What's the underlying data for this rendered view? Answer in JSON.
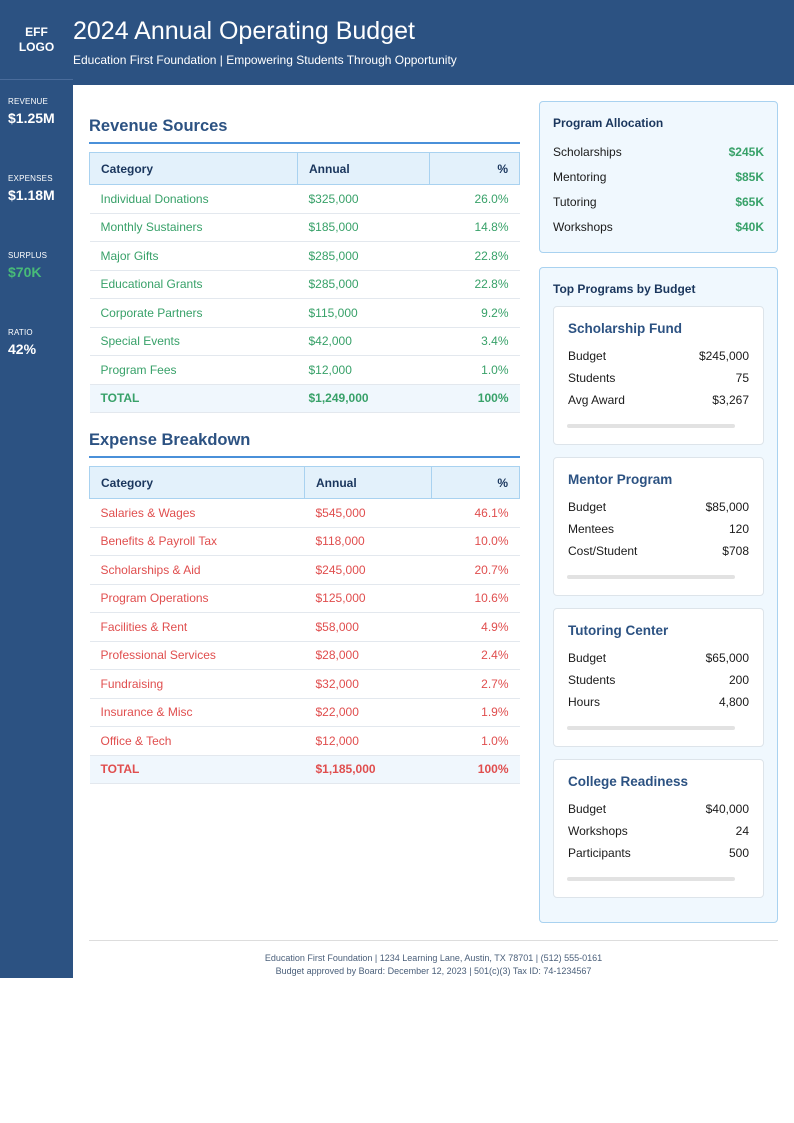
{
  "sidebar": {
    "logo_line1": "EFF",
    "logo_line2": "LOGO",
    "metrics": [
      {
        "label": "REVENUE",
        "value": "$1.25M"
      },
      {
        "label": "EXPENSES",
        "value": "$1.18M"
      },
      {
        "label": "SURPLUS",
        "value": "$70K"
      },
      {
        "label": "RATIO",
        "value": "42%"
      }
    ]
  },
  "header": {
    "title": "2024 Annual Operating Budget",
    "subtitle": "Education First Foundation | Empowering Students Through Opportunity"
  },
  "revenue": {
    "title": "Revenue Sources",
    "columns": [
      "Category",
      "Annual",
      "%"
    ],
    "rows": [
      [
        "Individual Donations",
        "$325,000",
        "26.0%"
      ],
      [
        "Monthly Sustainers",
        "$185,000",
        "14.8%"
      ],
      [
        "Major Gifts",
        "$285,000",
        "22.8%"
      ],
      [
        "Educational Grants",
        "$285,000",
        "22.8%"
      ],
      [
        "Corporate Partners",
        "$115,000",
        "9.2%"
      ],
      [
        "Special Events",
        "$42,000",
        "3.4%"
      ],
      [
        "Program Fees",
        "$12,000",
        "1.0%"
      ]
    ],
    "total": [
      "TOTAL",
      "$1,249,000",
      "100%"
    ]
  },
  "expenses": {
    "title": "Expense Breakdown",
    "columns": [
      "Category",
      "Annual",
      "%"
    ],
    "rows": [
      [
        "Salaries & Wages",
        "$545,000",
        "46.1%"
      ],
      [
        "Benefits & Payroll Tax",
        "$118,000",
        "10.0%"
      ],
      [
        "Scholarships & Aid",
        "$245,000",
        "20.7%"
      ],
      [
        "Program Operations",
        "$125,000",
        "10.6%"
      ],
      [
        "Facilities & Rent",
        "$58,000",
        "4.9%"
      ],
      [
        "Professional Services",
        "$28,000",
        "2.4%"
      ],
      [
        "Fundraising",
        "$32,000",
        "2.7%"
      ],
      [
        "Insurance & Misc",
        "$22,000",
        "1.9%"
      ],
      [
        "Office & Tech",
        "$12,000",
        "1.0%"
      ]
    ],
    "total": [
      "TOTAL",
      "$1,185,000",
      "100%"
    ]
  },
  "allocation": {
    "title": "Program Allocation",
    "items": [
      {
        "label": "Scholarships",
        "value": "$245K"
      },
      {
        "label": "Mentoring",
        "value": "$85K"
      },
      {
        "label": "Tutoring",
        "value": "$65K"
      },
      {
        "label": "Workshops",
        "value": "$40K"
      }
    ]
  },
  "programs": {
    "title": "Top Programs by Budget",
    "cards": [
      {
        "name": "Scholarship Fund",
        "rows": [
          [
            "Budget",
            "$245,000"
          ],
          [
            "Students",
            "75"
          ],
          [
            "Avg Award",
            "$3,267"
          ]
        ]
      },
      {
        "name": "Mentor Program",
        "rows": [
          [
            "Budget",
            "$85,000"
          ],
          [
            "Mentees",
            "120"
          ],
          [
            "Cost/Student",
            "$708"
          ]
        ]
      },
      {
        "name": "Tutoring Center",
        "rows": [
          [
            "Budget",
            "$65,000"
          ],
          [
            "Students",
            "200"
          ],
          [
            "Hours",
            "4,800"
          ]
        ]
      },
      {
        "name": "College Readiness",
        "rows": [
          [
            "Budget",
            "$40,000"
          ],
          [
            "Workshops",
            "24"
          ],
          [
            "Participants",
            "500"
          ]
        ]
      }
    ]
  },
  "footer": {
    "line1": "Education First Foundation | 1234 Learning Lane, Austin, TX 78701 | (512) 555-0161",
    "line2": "Budget approved by Board: December 12, 2023 | 501(c)(3) Tax ID: 74-1234567"
  },
  "colors": {
    "primary": "#2c5282",
    "revenue_green": "#38a169",
    "expense_red": "#e04e4e"
  }
}
